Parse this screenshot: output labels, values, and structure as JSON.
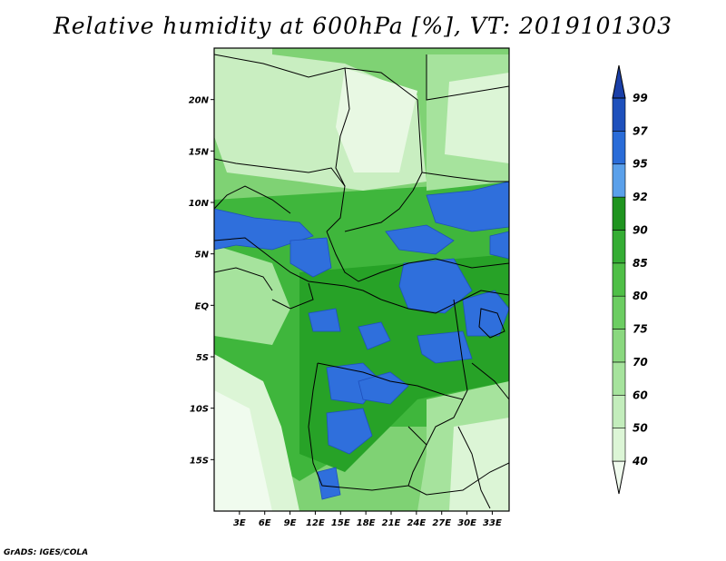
{
  "title": "Relative humidity at 600hPa [%], VT: 2019101303",
  "credit": "GrADS: IGES/COLA",
  "map": {
    "lon_range": [
      0,
      35
    ],
    "lat_range": [
      -20,
      25
    ],
    "lat_ticks": [
      {
        "label": "20N",
        "lat": 20
      },
      {
        "label": "15N",
        "lat": 15
      },
      {
        "label": "10N",
        "lat": 10
      },
      {
        "label": "5N",
        "lat": 5
      },
      {
        "label": "EQ",
        "lat": 0
      },
      {
        "label": "5S",
        "lat": -5
      },
      {
        "label": "10S",
        "lat": -10
      },
      {
        "label": "15S",
        "lat": -15
      }
    ],
    "lon_ticks": [
      {
        "label": "3E",
        "lon": 3
      },
      {
        "label": "6E",
        "lon": 6
      },
      {
        "label": "9E",
        "lon": 9
      },
      {
        "label": "12E",
        "lon": 12
      },
      {
        "label": "15E",
        "lon": 15
      },
      {
        "label": "18E",
        "lon": 18
      },
      {
        "label": "21E",
        "lon": 21
      },
      {
        "label": "24E",
        "lon": 24
      },
      {
        "label": "27E",
        "lon": 27
      },
      {
        "label": "30E",
        "lon": 30
      },
      {
        "label": "33E",
        "lon": 33
      }
    ]
  },
  "colorbar": {
    "levels": [
      "40",
      "50",
      "60",
      "70",
      "75",
      "80",
      "85",
      "90",
      "92",
      "95",
      "97",
      "99"
    ],
    "colors": [
      "#f0fbee",
      "#dcf5d6",
      "#c3edbc",
      "#a6e39d",
      "#8ad87f",
      "#6ccd62",
      "#4fbf47",
      "#35ad34",
      "#1f941f",
      "#5aa0ea",
      "#2a6cd8",
      "#1e50bc",
      "#1a3fa8"
    ]
  }
}
